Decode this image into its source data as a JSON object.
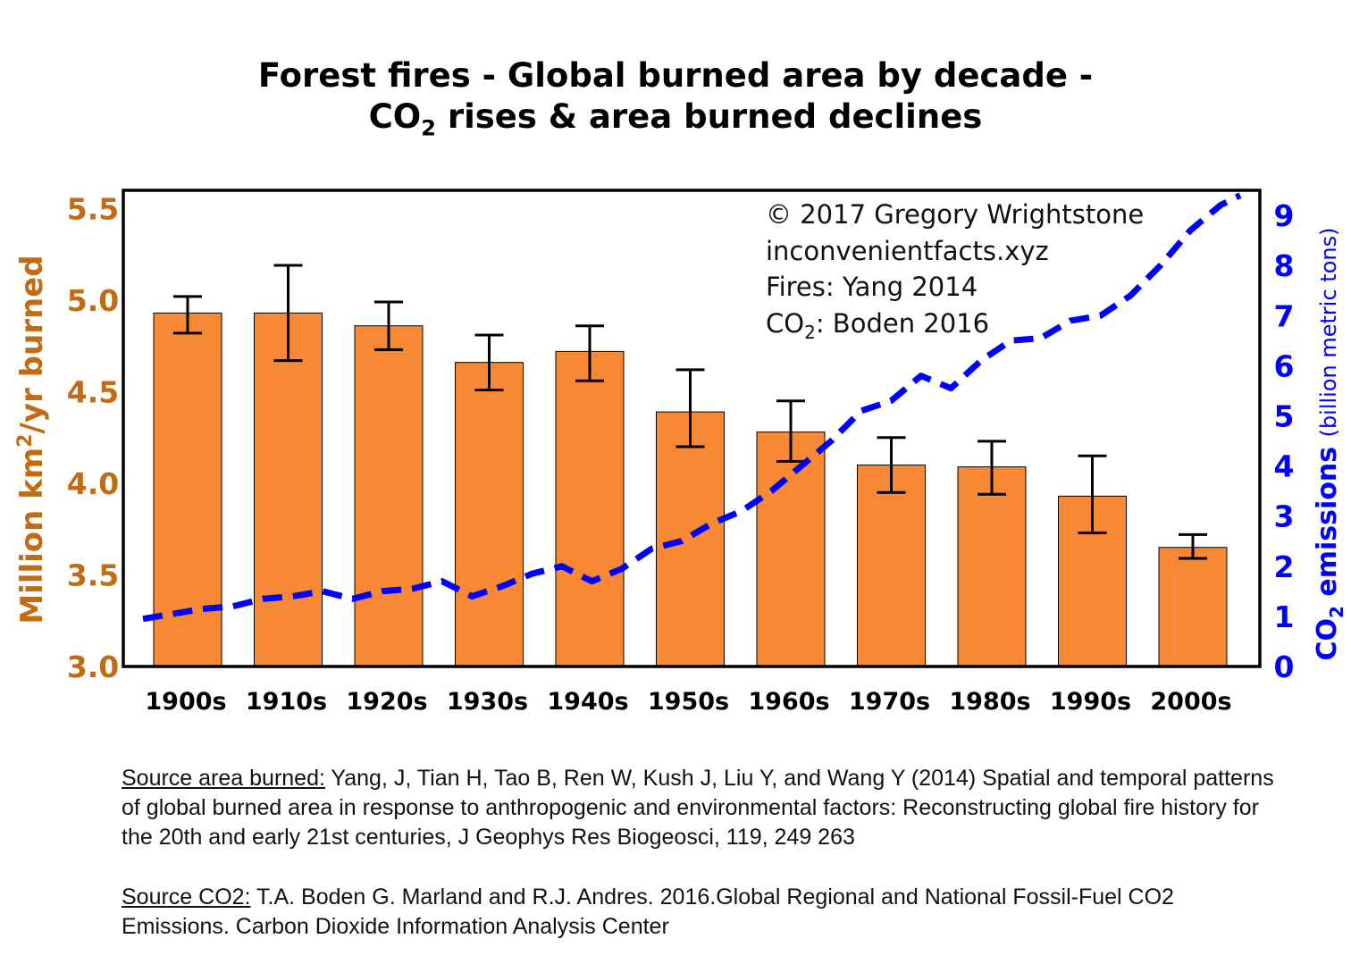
{
  "title_line1": "Forest fires - Global burned area by decade -",
  "title_line2_pre": "CO",
  "title_line2_sub": "2",
  "title_line2_post": " rises & area burned declines",
  "annotation": {
    "line1": "© 2017 Gregory Wrightstone",
    "line2": "inconvenientfacts.xyz",
    "line3": "Fires: Yang 2014",
    "line4_pre": "CO",
    "line4_sub": "2",
    "line4_post": ": Boden 2016"
  },
  "y_left_label": {
    "pre": "Million km",
    "sup": "2",
    "post": "/yr burned"
  },
  "y_right_label": {
    "pre": "CO",
    "sub": "2",
    "main": " emissions ",
    "small": "(billion metric tons)"
  },
  "chart_data": {
    "type": "bar",
    "categories": [
      "1900s",
      "1910s",
      "1920s",
      "1930s",
      "1940s",
      "1950s",
      "1960s",
      "1970s",
      "1980s",
      "1990s",
      "2000s"
    ],
    "series": [
      {
        "axis": "left",
        "type": "bar",
        "values": [
          4.93,
          4.93,
          4.86,
          4.66,
          4.72,
          4.39,
          4.28,
          4.1,
          4.09,
          3.93,
          3.65
        ],
        "error_low": [
          4.82,
          4.67,
          4.73,
          4.51,
          4.56,
          4.2,
          4.12,
          3.95,
          3.94,
          3.73,
          3.59
        ],
        "error_high": [
          5.02,
          5.19,
          4.99,
          4.81,
          4.86,
          4.62,
          4.45,
          4.25,
          4.23,
          4.15,
          3.72
        ],
        "color": "#F78934"
      },
      {
        "axis": "right",
        "type": "line",
        "style": "dashed",
        "color": "#0000FF",
        "x": [
          1900,
          1903,
          1906,
          1909,
          1912,
          1915,
          1918,
          1921,
          1924,
          1927,
          1930,
          1933,
          1936,
          1939,
          1942,
          1945,
          1948,
          1951,
          1954,
          1957,
          1960,
          1963,
          1966,
          1969,
          1972,
          1975,
          1978,
          1981,
          1984,
          1987,
          1990,
          1993,
          1996,
          1999,
          2002,
          2005,
          2008,
          2010
        ],
        "values": [
          0.95,
          1.05,
          1.15,
          1.2,
          1.35,
          1.4,
          1.5,
          1.35,
          1.5,
          1.55,
          1.7,
          1.4,
          1.6,
          1.85,
          2.0,
          1.7,
          1.95,
          2.35,
          2.5,
          2.85,
          3.1,
          3.5,
          4.0,
          4.5,
          5.1,
          5.3,
          5.8,
          5.55,
          6.1,
          6.5,
          6.55,
          6.9,
          7.0,
          7.4,
          8.0,
          8.7,
          9.2,
          9.4
        ]
      }
    ],
    "ylim_left": [
      3.0,
      5.6
    ],
    "yticks_left": [
      "3.0",
      "3.5",
      "4.0",
      "4.5",
      "5.0",
      "5.5"
    ],
    "ylim_right": [
      0,
      9.5
    ],
    "yticks_right": [
      "0",
      "1",
      "2",
      "3",
      "4",
      "5",
      "6",
      "7",
      "8",
      "9"
    ],
    "left_axis_color": "#C26B12",
    "right_axis_color": "#0000FF",
    "grid": false
  },
  "source_area": {
    "label": "Source area burned:",
    "text": " Yang, J, Tian H, Tao B, Ren W, Kush J, Liu Y, and Wang Y (2014) Spatial and temporal patterns of global burned area in response to anthropogenic and environmental factors: Reconstructing global fire history for the 20th and early 21st centuries, J Geophys Res Biogeosci, 119, 249 263"
  },
  "source_co2": {
    "label": "Source CO2:",
    "text": " T.A. Boden G. Marland and R.J. Andres. 2016.Global Regional and National Fossil-Fuel CO2 Emissions. Carbon Dioxide Information Analysis Center"
  }
}
